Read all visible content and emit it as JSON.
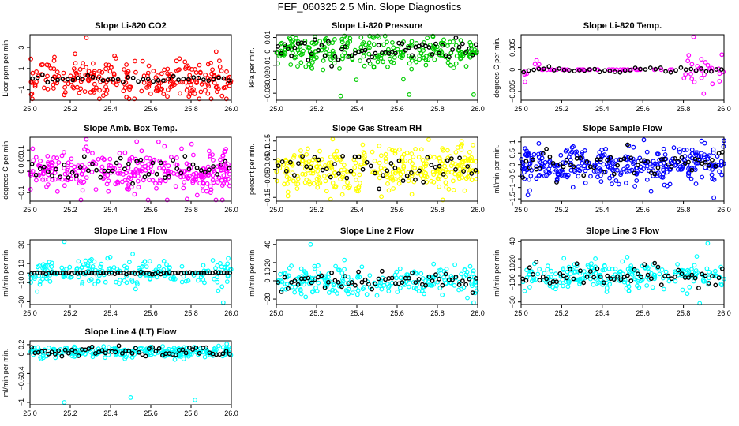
{
  "title": "FEF_060325  2.5 Min. Slope Diagnostics",
  "chart_data": [
    {
      "type": "scatter",
      "title": "Slope Li-820 CO2",
      "ylabel": "Licor ppm per min.",
      "xlim": [
        25.0,
        26.0
      ],
      "ylim": [
        -2.0,
        4.2
      ],
      "xticks": [
        25.0,
        25.2,
        25.4,
        25.6,
        25.8,
        26.0
      ],
      "yticks": [
        -1,
        1,
        3
      ],
      "color": "#ff0000",
      "center": 0.0,
      "spread": 0.9,
      "n": 260,
      "overlay_center": 0.0,
      "overlay_spread": 0.15,
      "overlay_n": 40,
      "outliers": [
        [
          25.28,
          3.9
        ],
        [
          25.17,
          -1.5
        ],
        [
          25.42,
          2.2
        ]
      ]
    },
    {
      "type": "scatter",
      "title": "Slope Li-820 Pressure",
      "ylabel": "kPa per min.",
      "xlim": [
        25.0,
        26.0
      ],
      "ylim": [
        -0.035,
        0.012
      ],
      "xticks": [
        25.0,
        25.2,
        25.4,
        25.6,
        25.8,
        26.0
      ],
      "yticks": [
        -0.03,
        -0.02,
        -0.01,
        0.0,
        0.01
      ],
      "color": "#00cc00",
      "center": 0.0,
      "spread": 0.006,
      "n": 260,
      "overlay_center": 0.0,
      "overlay_spread": 0.004,
      "overlay_n": 60,
      "outliers": [
        [
          25.32,
          -0.032
        ],
        [
          25.66,
          -0.031
        ],
        [
          25.98,
          -0.031
        ]
      ]
    },
    {
      "type": "scatter",
      "title": "Slope Li-820 Temp.",
      "ylabel": "degrees C per min.",
      "xlim": [
        25.0,
        26.0
      ],
      "ylim": [
        -0.007,
        0.008
      ],
      "xticks": [
        25.0,
        25.2,
        25.4,
        25.6,
        25.8,
        26.0
      ],
      "yticks": [
        -0.005,
        0.0,
        0.005
      ],
      "color": "#ff00ff",
      "center": 0.0,
      "spread": 0.0005,
      "n": 120,
      "overlay_center": 0.0,
      "overlay_spread": 0.0003,
      "overlay_n": 40,
      "outliers": [
        [
          25.85,
          0.0075
        ],
        [
          25.9,
          -0.0055
        ]
      ]
    },
    {
      "type": "scatter",
      "title": "Slope Amb. Box Temp.",
      "ylabel": "degrees C per min.",
      "xlim": [
        25.0,
        26.0
      ],
      "ylim": [
        -0.14,
        0.16
      ],
      "xticks": [
        25.0,
        25.2,
        25.4,
        25.6,
        25.8,
        26.0
      ],
      "yticks": [
        -0.1,
        0.0,
        0.05,
        0.1
      ],
      "color": "#ff00ff",
      "center": 0.0,
      "spread": 0.05,
      "n": 320,
      "overlay_center": 0.0,
      "overlay_spread": 0.03,
      "overlay_n": 50,
      "outliers": [
        [
          25.28,
          0.15
        ],
        [
          25.78,
          -0.13
        ]
      ]
    },
    {
      "type": "scatter",
      "title": "Slope Gas Stream RH",
      "ylabel": "percent per min.",
      "xlim": [
        25.0,
        26.0
      ],
      "ylim": [
        -0.17,
        0.17
      ],
      "xticks": [
        25.0,
        25.2,
        25.4,
        25.6,
        25.8,
        26.0
      ],
      "yticks": [
        -0.15,
        -0.05,
        0.0,
        0.05,
        0.1,
        0.15
      ],
      "color": "#ffff00",
      "center": 0.0,
      "spread": 0.06,
      "n": 320,
      "overlay_center": 0.0,
      "overlay_spread": 0.04,
      "overlay_n": 50,
      "outliers": [
        [
          25.27,
          -0.16
        ],
        [
          25.28,
          0.16
        ]
      ]
    },
    {
      "type": "scatter",
      "title": "Slope Sample Flow",
      "ylabel": "ml/min per min.",
      "xlim": [
        25.0,
        26.0
      ],
      "ylim": [
        -1.6,
        1.2
      ],
      "xticks": [
        25.0,
        25.2,
        25.4,
        25.6,
        25.8,
        26.0
      ],
      "yticks": [
        -1.5,
        -1.0,
        -0.5,
        0.0,
        0.5,
        1.0
      ],
      "color": "#0000ff",
      "center": 0.0,
      "spread": 0.4,
      "n": 320,
      "overlay_center": 0.0,
      "overlay_spread": 0.3,
      "overlay_n": 60,
      "outliers": [
        [
          25.95,
          -1.45
        ],
        [
          26.0,
          1.05
        ]
      ]
    },
    {
      "type": "scatter",
      "title": "Slope Line 1 Flow",
      "ylabel": "ml/min per min.",
      "xlim": [
        25.0,
        26.0
      ],
      "ylim": [
        -33,
        35
      ],
      "xticks": [
        25.0,
        25.2,
        25.4,
        25.6,
        25.8,
        26.0
      ],
      "yticks": [
        -30,
        -10,
        0,
        10,
        30
      ],
      "color": "#00ffff",
      "center": 0.0,
      "spread": 8,
      "n": 200,
      "overlay_center": 0.0,
      "overlay_spread": 0.5,
      "overlay_n": 70,
      "outliers": [
        [
          25.17,
          33
        ],
        [
          25.96,
          -31
        ]
      ]
    },
    {
      "type": "scatter",
      "title": "Slope Line 2 Flow",
      "ylabel": "ml/min per min.",
      "xlim": [
        25.0,
        26.0
      ],
      "ylim": [
        -26,
        45
      ],
      "xticks": [
        25.0,
        25.2,
        25.4,
        25.6,
        25.8,
        26.0
      ],
      "yticks": [
        -20,
        0,
        10,
        20,
        40
      ],
      "color": "#00ffff",
      "center": 0.0,
      "spread": 8,
      "n": 220,
      "overlay_center": 0.0,
      "overlay_spread": 5,
      "overlay_n": 60,
      "outliers": [
        [
          25.17,
          40
        ],
        [
          25.98,
          -24
        ]
      ]
    },
    {
      "type": "scatter",
      "title": "Slope Line 3 Flow",
      "ylabel": "ml/min per min.",
      "xlim": [
        25.0,
        26.0
      ],
      "ylim": [
        -33,
        42
      ],
      "xticks": [
        25.0,
        25.2,
        25.4,
        25.6,
        25.8,
        26.0
      ],
      "yticks": [
        -30,
        -10,
        0,
        10,
        20,
        40
      ],
      "color": "#00ffff",
      "center": 0.0,
      "spread": 8,
      "n": 220,
      "overlay_center": 0.0,
      "overlay_spread": 6,
      "overlay_n": 60,
      "outliers": [
        [
          25.88,
          -32
        ],
        [
          25.92,
          38
        ]
      ]
    },
    {
      "type": "scatter",
      "title": "Slope Line 4 (LT) Flow",
      "ylabel": "ml/min per min.",
      "xlim": [
        25.0,
        26.0
      ],
      "ylim": [
        -1.05,
        0.28
      ],
      "xticks": [
        25.0,
        25.2,
        25.4,
        25.6,
        25.8,
        26.0
      ],
      "yticks": [
        -1.0,
        -0.6,
        -0.4,
        0.0,
        0.2
      ],
      "color": "#00ffff",
      "center": 0.05,
      "spread": 0.06,
      "n": 240,
      "overlay_center": 0.05,
      "overlay_spread": 0.05,
      "overlay_n": 60,
      "outliers": [
        [
          25.17,
          -1.0
        ],
        [
          25.5,
          -0.9
        ],
        [
          25.82,
          -0.95
        ]
      ]
    }
  ]
}
